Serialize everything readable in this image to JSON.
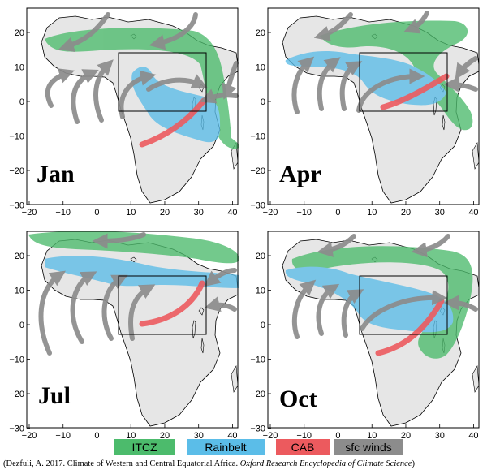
{
  "panels": [
    {
      "id": "jan",
      "label": "Jan"
    },
    {
      "id": "apr",
      "label": "Apr"
    },
    {
      "id": "jul",
      "label": "Jul"
    },
    {
      "id": "oct",
      "label": "Oct"
    }
  ],
  "axes": {
    "x_ticks": [
      "−20",
      "−10",
      "0",
      "10",
      "20",
      "30",
      "40"
    ],
    "y_ticks": [
      "20",
      "10",
      "0",
      "−10",
      "−20",
      "−30"
    ]
  },
  "legend": [
    {
      "key": "itcz",
      "label": "ITCZ",
      "color": "#4cbb6c"
    },
    {
      "key": "rainbelt",
      "label": "Rainbelt",
      "color": "#5bbde8"
    },
    {
      "key": "cab",
      "label": "CAB",
      "color": "#ec5a5e"
    },
    {
      "key": "winds",
      "label": "sfc winds",
      "color": "#8c8c8c"
    }
  ],
  "citation": {
    "prefix": "(Dezfuli, A. 2017. Climate of Western and Central Equatorial Africa. ",
    "journal": "Oxford Research Encyclopedia of Climate Science",
    "suffix": ")"
  },
  "colors": {
    "land": "#e6e6e6",
    "coast": "#000000",
    "box": "#000000"
  }
}
